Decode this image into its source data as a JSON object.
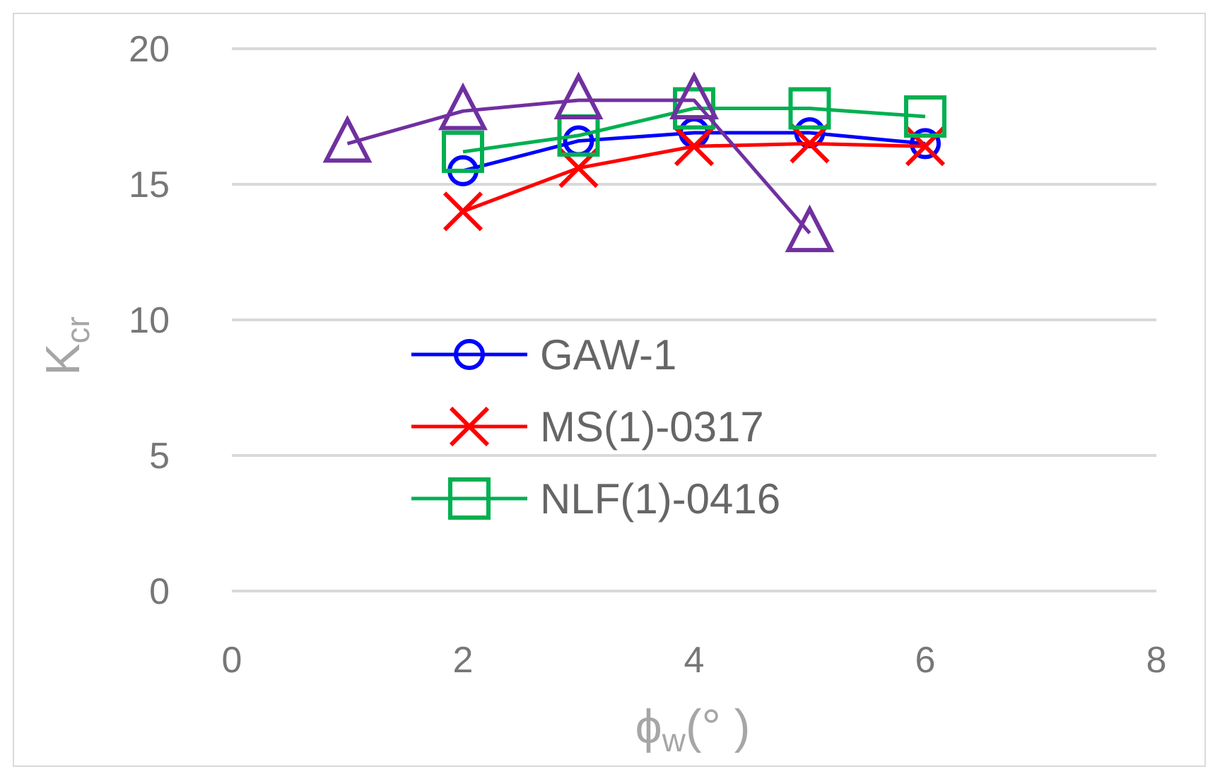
{
  "chart_data": {
    "type": "line",
    "title": "",
    "xlabel": {
      "main": "ϕ",
      "sub": "w",
      "rest": "(°   )"
    },
    "ylabel": {
      "main": "K",
      "sub": "cr"
    },
    "xlim": [
      0,
      8
    ],
    "ylim": [
      0,
      20
    ],
    "xticks": [
      0,
      2,
      4,
      6,
      8
    ],
    "yticks": [
      0,
      5,
      10,
      15,
      20
    ],
    "grid": "horizontal",
    "legend_position": "center-left",
    "series": [
      {
        "name": "GAW-1",
        "color": "#0000ff",
        "marker": "circle",
        "x": [
          2,
          3,
          4,
          5,
          6
        ],
        "y": [
          15.5,
          16.6,
          16.9,
          16.9,
          16.5
        ]
      },
      {
        "name": "MS(1)-0317",
        "color": "#ff0000",
        "marker": "x",
        "x": [
          2,
          3,
          4,
          5,
          6
        ],
        "y": [
          14.0,
          15.6,
          16.4,
          16.5,
          16.4
        ]
      },
      {
        "name": "NLF(1)-0416",
        "color": "#00b050",
        "marker": "square",
        "x": [
          2,
          3,
          4,
          5,
          6
        ],
        "y": [
          16.2,
          16.8,
          17.8,
          17.8,
          17.5
        ]
      },
      {
        "color": "#7030a0",
        "marker": "triangle",
        "x": [
          1,
          2,
          3,
          4,
          5
        ],
        "y": [
          16.5,
          17.7,
          18.1,
          18.1,
          13.2
        ]
      }
    ]
  }
}
